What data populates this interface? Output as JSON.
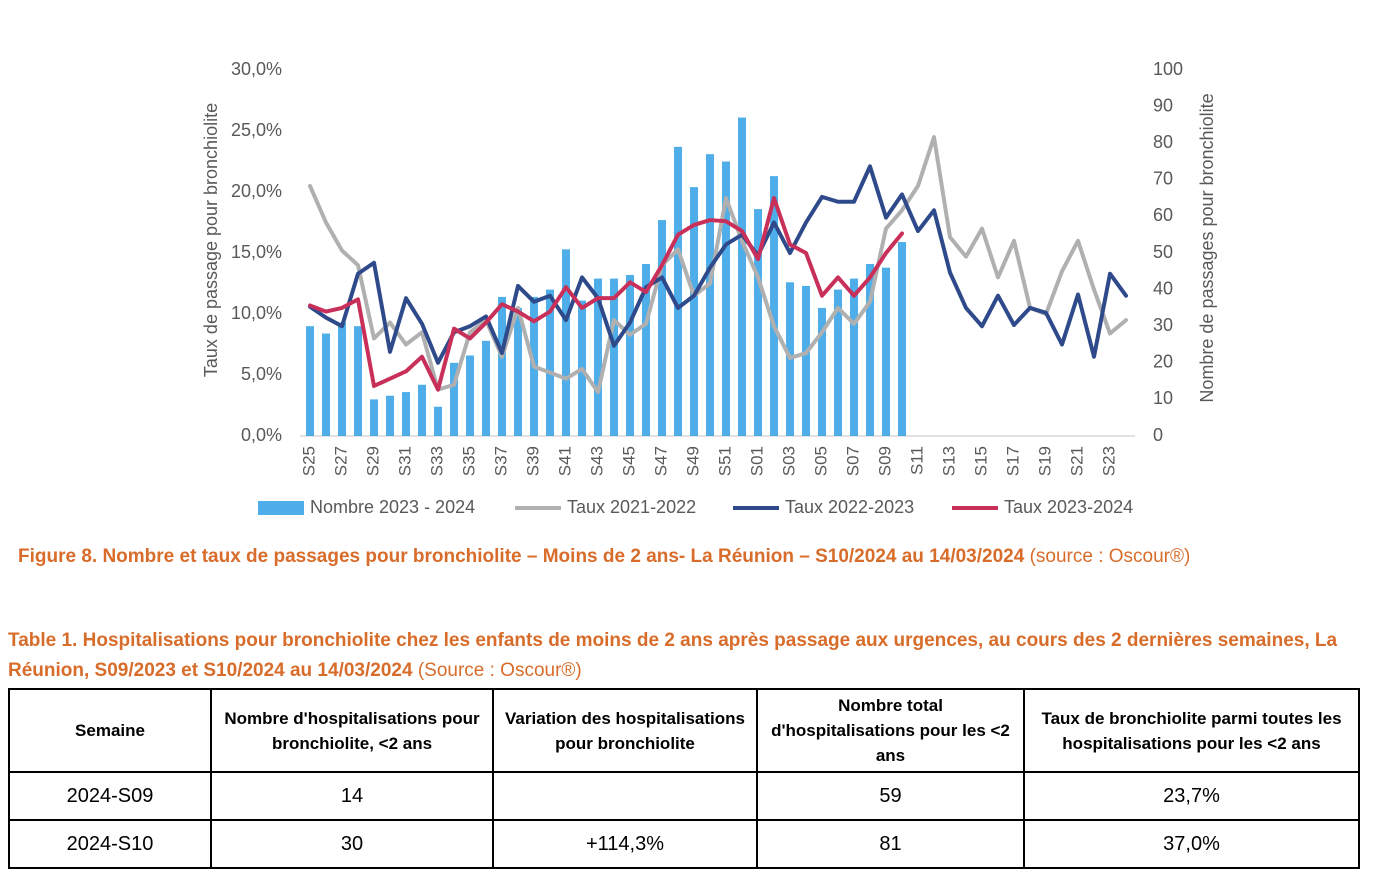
{
  "chart_data": {
    "type": "bar",
    "y_label": "Taux de passage pour bronchiolite",
    "y2_label": "Nombre de passages pour bronchiolite",
    "categories": [
      "S25",
      null,
      "S27",
      null,
      "S29",
      null,
      "S31",
      null,
      "S33",
      null,
      "S35",
      null,
      "S37",
      null,
      "S39",
      null,
      "S41",
      null,
      "S43",
      null,
      "S45",
      null,
      "S47",
      null,
      "S49",
      null,
      "S51",
      null,
      "S01",
      null,
      "S03",
      null,
      "S05",
      null,
      "S07",
      null,
      "S09",
      null,
      "S11",
      null,
      "S13",
      null,
      "S15",
      null,
      "S17",
      null,
      "S19",
      null,
      "S21",
      null,
      "S23",
      null
    ],
    "ylim": [
      0,
      30
    ],
    "yticks": [
      {
        "value": 0,
        "label": "0,0%"
      },
      {
        "value": 5,
        "label": "5,0%"
      },
      {
        "value": 10,
        "label": "10,0%"
      },
      {
        "value": 15,
        "label": "15,0%"
      },
      {
        "value": 20,
        "label": "20,0%"
      },
      {
        "value": 25,
        "label": "25,0%"
      },
      {
        "value": 30,
        "label": "30,0%"
      }
    ],
    "y2lim": [
      0,
      100
    ],
    "y2ticks": [
      0,
      10,
      20,
      30,
      40,
      50,
      60,
      70,
      80,
      90,
      100
    ],
    "series": [
      {
        "name": "Nombre 2023 - 2024",
        "type": "bar",
        "axis": "y2",
        "color": "#4eaeea",
        "values": [
          30,
          28,
          31,
          30,
          10,
          11,
          12,
          14,
          8,
          20,
          22,
          26,
          38,
          35,
          38,
          40,
          51,
          37,
          43,
          43,
          44,
          47,
          59,
          79,
          68,
          77,
          75,
          87,
          62,
          71,
          42,
          41,
          35,
          40,
          43,
          47,
          46,
          53,
          null,
          null,
          null,
          null,
          null,
          null,
          null,
          null,
          null,
          null,
          null,
          null,
          null,
          null
        ]
      },
      {
        "name": "Taux 2021-2022",
        "type": "line",
        "color": "#b0b0b0",
        "values": [
          20.5,
          17.5,
          15.2,
          14.0,
          8.0,
          9.3,
          7.5,
          8.5,
          3.8,
          4.2,
          8.5,
          9.5,
          6.5,
          10.5,
          5.7,
          5.2,
          4.7,
          5.5,
          3.6,
          9.5,
          8.3,
          9.2,
          14.0,
          15.3,
          11.5,
          12.5,
          19.5,
          16.0,
          13.0,
          9.0,
          6.4,
          6.8,
          8.5,
          10.5,
          9.2,
          11.0,
          17.0,
          18.5,
          20.5,
          24.5,
          16.3,
          14.7,
          17.0,
          13.0,
          16.0,
          10.5,
          10.0,
          13.5,
          16.0,
          12.0,
          8.4,
          9.5
        ]
      },
      {
        "name": "Taux 2022-2023",
        "type": "line",
        "color": "#2f4a8a",
        "values": [
          10.6,
          9.7,
          9.0,
          13.3,
          14.2,
          6.9,
          11.3,
          9.2,
          6.0,
          8.5,
          9.0,
          9.8,
          6.8,
          12.3,
          11.0,
          11.5,
          9.5,
          13.0,
          11.3,
          7.4,
          9.3,
          12.2,
          13.0,
          10.5,
          11.5,
          13.8,
          15.7,
          16.5,
          14.8,
          17.5,
          15.0,
          17.5,
          19.6,
          19.2,
          19.2,
          22.1,
          17.9,
          19.8,
          16.8,
          18.5,
          13.4,
          10.5,
          9.0,
          11.5,
          9.1,
          10.5,
          10.1,
          7.5,
          11.6,
          6.5,
          13.3,
          11.5
        ]
      },
      {
        "name": "Taux 2023-2024",
        "type": "line",
        "color": "#c8305a",
        "values": [
          10.7,
          10.2,
          10.5,
          11.2,
          4.1,
          4.7,
          5.3,
          6.5,
          3.8,
          8.8,
          8.0,
          9.3,
          10.8,
          10.2,
          9.4,
          10.2,
          12.2,
          10.5,
          11.3,
          11.3,
          12.6,
          11.8,
          14.0,
          16.5,
          17.3,
          17.7,
          17.6,
          16.8,
          14.5,
          19.5,
          15.7,
          15.0,
          11.5,
          13.0,
          11.5,
          13.0,
          15.0,
          16.6,
          null,
          null,
          null,
          null,
          null,
          null,
          null,
          null,
          null,
          null,
          null,
          null,
          null,
          null
        ]
      }
    ]
  },
  "figure_caption": {
    "title": "Figure 8. Nombre et taux de passages pour bronchiolite – Moins de 2 ans- La Réunion – S10/2024 au 14/03/2024",
    "source": "(source : Oscour®)"
  },
  "table": {
    "title": "Table 1. Hospitalisations pour bronchiolite chez les enfants de moins de 2 ans après passage aux urgences, au cours des 2 dernières semaines, La Réunion, S09/2023 et S10/2024 au 14/03/2024",
    "source": "(Source : Oscour®)",
    "header": [
      "Semaine",
      "Nombre d'hospitalisations pour bronchiolite, <2 ans",
      "Variation des hospitalisations pour bronchiolite",
      "Nombre total d'hospitalisations pour les <2 ans",
      "Taux de bronchiolite parmi toutes les hospitalisations pour les <2 ans"
    ],
    "rows": [
      [
        "2024-S09",
        "14",
        null,
        "59",
        "23,7%"
      ],
      [
        "2024-S10",
        "30",
        "+114,3%",
        "81",
        "37,0%"
      ]
    ]
  }
}
